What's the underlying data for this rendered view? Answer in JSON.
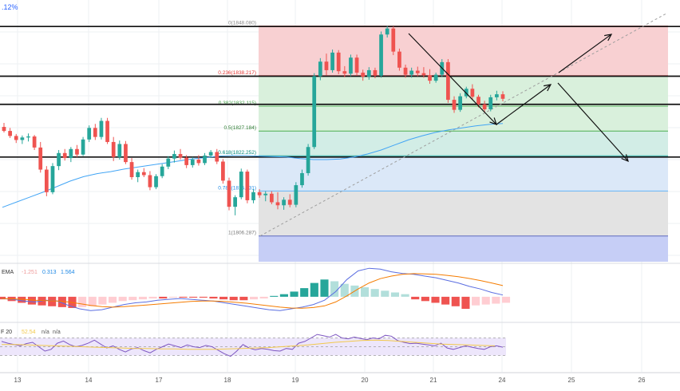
{
  "header": {
    "price_fragment": ".12%"
  },
  "colors": {
    "bull": "#26a69a",
    "bear": "#ef5350",
    "ema_line": "#42a5f5",
    "macd_line": "#5b6ee1",
    "signal_line": "#f57c00",
    "rsi_line": "#7e57c2",
    "rsi_ma": "#f2c94c",
    "fib_red": "#f8d0d2",
    "fib_green": "#d9f0dc",
    "fib_teal": "#d2ede6",
    "fib_blue": "#dbe8f8",
    "fib_gray": "#e3e3e3",
    "fib_violet": "#c6cef6",
    "rsi_band": "#ede6fb"
  },
  "chart_data": [
    {
      "type": "candlestick",
      "title": "",
      "x_labels": [
        "13",
        "14",
        "17",
        "18",
        "19",
        "20",
        "21",
        "24",
        "25",
        "26"
      ],
      "y_range": [
        1801,
        1852
      ],
      "fib_levels": [
        {
          "ratio": "0",
          "price": 1848.08,
          "label": "0(1848.080)"
        },
        {
          "ratio": "0.236",
          "price": 1838.217,
          "label": "0.236(1838.217)"
        },
        {
          "ratio": "0.382",
          "price": 1832.115,
          "label": "0.382(1832.115)"
        },
        {
          "ratio": "0.5",
          "price": 1827.184,
          "label": "0.5(1827.184)"
        },
        {
          "ratio": "0.618",
          "price": 1822.252,
          "label": "0.618(1822.252)"
        },
        {
          "ratio": "0.786",
          "price": 1815.231,
          "label": "0.786(1815.231)"
        },
        {
          "ratio": "1",
          "price": 1806.287,
          "label": "1(1806.287)"
        }
      ],
      "horizontal_lines": [
        1848.0,
        1838.1,
        1832.5,
        1822.0
      ],
      "candles": [
        [
          1828.0,
          1828.8,
          1826.9,
          1827.2
        ],
        [
          1827.2,
          1827.8,
          1825.8,
          1826.2
        ],
        [
          1826.2,
          1826.6,
          1824.8,
          1825.4
        ],
        [
          1825.4,
          1826.3,
          1824.6,
          1825.9
        ],
        [
          1825.9,
          1826.7,
          1825.1,
          1826.1
        ],
        [
          1826.1,
          1826.4,
          1823.4,
          1823.9
        ],
        [
          1823.9,
          1825.0,
          1818.9,
          1819.5
        ],
        [
          1819.5,
          1820.2,
          1814.2,
          1815.0
        ],
        [
          1815.0,
          1820.8,
          1814.6,
          1820.2
        ],
        [
          1820.2,
          1823.4,
          1819.4,
          1822.8
        ],
        [
          1822.8,
          1823.6,
          1821.3,
          1821.8
        ],
        [
          1821.8,
          1824.0,
          1821.0,
          1823.6
        ],
        [
          1823.6,
          1824.4,
          1822.0,
          1822.5
        ],
        [
          1822.5,
          1826.0,
          1822.2,
          1825.5
        ],
        [
          1825.5,
          1828.3,
          1825.0,
          1827.8
        ],
        [
          1827.8,
          1828.6,
          1825.4,
          1826.0
        ],
        [
          1826.0,
          1829.8,
          1825.5,
          1829.2
        ],
        [
          1829.2,
          1829.8,
          1824.6,
          1825.0
        ],
        [
          1825.0,
          1826.0,
          1821.2,
          1822.0
        ],
        [
          1822.0,
          1825.3,
          1821.5,
          1824.6
        ],
        [
          1824.6,
          1825.2,
          1820.6,
          1821.0
        ],
        [
          1821.0,
          1821.8,
          1817.5,
          1818.0
        ],
        [
          1818.0,
          1819.5,
          1817.0,
          1819.0
        ],
        [
          1819.0,
          1819.8,
          1818.0,
          1818.4
        ],
        [
          1818.4,
          1819.2,
          1815.4,
          1816.0
        ],
        [
          1816.0,
          1818.6,
          1815.6,
          1818.2
        ],
        [
          1818.2,
          1820.6,
          1817.8,
          1820.1
        ],
        [
          1820.1,
          1822.2,
          1819.6,
          1821.7
        ],
        [
          1821.7,
          1823.3,
          1820.9,
          1822.6
        ],
        [
          1822.6,
          1823.6,
          1821.5,
          1821.9
        ],
        [
          1821.9,
          1822.4,
          1819.8,
          1820.4
        ],
        [
          1820.4,
          1822.0,
          1819.9,
          1821.5
        ],
        [
          1821.5,
          1822.4,
          1820.3,
          1820.8
        ],
        [
          1820.8,
          1822.8,
          1820.4,
          1822.3
        ],
        [
          1822.3,
          1823.4,
          1821.8,
          1823.0
        ],
        [
          1823.0,
          1823.6,
          1820.6,
          1821.1
        ],
        [
          1821.1,
          1821.6,
          1816.7,
          1817.3
        ],
        [
          1817.3,
          1817.9,
          1811.4,
          1812.1
        ],
        [
          1812.1,
          1814.4,
          1810.4,
          1814.0
        ],
        [
          1814.0,
          1819.7,
          1813.6,
          1819.1
        ],
        [
          1819.1,
          1819.5,
          1812.8,
          1813.4
        ],
        [
          1813.4,
          1815.6,
          1812.8,
          1815.0
        ],
        [
          1815.0,
          1815.6,
          1813.9,
          1814.4
        ],
        [
          1814.4,
          1815.2,
          1813.2,
          1814.7
        ],
        [
          1814.7,
          1815.2,
          1812.6,
          1813.0
        ],
        [
          1813.0,
          1815.0,
          1811.6,
          1812.4
        ],
        [
          1812.4,
          1814.0,
          1811.5,
          1813.5
        ],
        [
          1813.5,
          1814.6,
          1812.0,
          1812.5
        ],
        [
          1812.5,
          1817.0,
          1812.0,
          1816.4
        ],
        [
          1816.4,
          1819.5,
          1815.9,
          1818.8
        ],
        [
          1818.8,
          1824.6,
          1818.3,
          1824.0
        ],
        [
          1824.0,
          1838.7,
          1823.6,
          1838.1
        ],
        [
          1838.1,
          1841.7,
          1837.3,
          1841.0
        ],
        [
          1841.0,
          1842.6,
          1838.3,
          1839.3
        ],
        [
          1839.3,
          1843.4,
          1838.8,
          1842.8
        ],
        [
          1842.8,
          1843.3,
          1838.5,
          1839.1
        ],
        [
          1839.1,
          1840.1,
          1837.9,
          1838.6
        ],
        [
          1838.6,
          1842.4,
          1838.1,
          1841.8
        ],
        [
          1841.8,
          1842.4,
          1838.2,
          1838.8
        ],
        [
          1838.8,
          1839.4,
          1837.2,
          1838.0
        ],
        [
          1838.0,
          1839.9,
          1837.4,
          1839.3
        ],
        [
          1839.3,
          1839.8,
          1837.7,
          1838.2
        ],
        [
          1838.2,
          1847.0,
          1837.8,
          1846.4
        ],
        [
          1846.4,
          1848.1,
          1845.8,
          1847.6
        ],
        [
          1847.6,
          1848.0,
          1842.3,
          1843.0
        ],
        [
          1843.0,
          1843.6,
          1839.2,
          1839.8
        ],
        [
          1839.8,
          1840.4,
          1837.8,
          1838.4
        ],
        [
          1838.4,
          1839.8,
          1837.8,
          1839.2
        ],
        [
          1839.2,
          1840.0,
          1838.1,
          1838.7
        ],
        [
          1838.7,
          1839.9,
          1837.8,
          1838.3
        ],
        [
          1838.3,
          1839.5,
          1836.6,
          1837.2
        ],
        [
          1837.2,
          1838.8,
          1836.8,
          1838.4
        ],
        [
          1838.4,
          1841.5,
          1838.0,
          1840.9
        ],
        [
          1840.9,
          1841.5,
          1832.8,
          1833.4
        ],
        [
          1833.4,
          1834.1,
          1830.8,
          1831.4
        ],
        [
          1831.4,
          1834.7,
          1831.0,
          1834.1
        ],
        [
          1834.1,
          1836.0,
          1833.7,
          1835.6
        ],
        [
          1835.6,
          1836.5,
          1833.5,
          1834.0
        ],
        [
          1834.0,
          1834.4,
          1831.9,
          1832.5
        ],
        [
          1832.5,
          1833.2,
          1830.9,
          1831.5
        ],
        [
          1831.5,
          1834.4,
          1831.1,
          1833.9
        ],
        [
          1833.9,
          1835.2,
          1833.3,
          1834.5
        ],
        [
          1834.5,
          1835.1,
          1833.1,
          1833.6
        ]
      ],
      "ema": [
        1812.0,
        1813.0,
        1814.0,
        1815.0,
        1816.1,
        1817.2,
        1818.1,
        1818.7,
        1819.1,
        1819.6,
        1820.0,
        1820.4,
        1820.8,
        1821.2,
        1821.6,
        1821.9,
        1822.2,
        1822.3,
        1822.3,
        1822.2,
        1822.1,
        1822.0,
        1821.7,
        1821.5,
        1821.5,
        1821.6,
        1822.0,
        1822.6,
        1823.4,
        1824.4,
        1825.4,
        1826.2,
        1826.9,
        1827.4,
        1827.8,
        1828.2,
        1828.5,
        1828.7
      ],
      "trend_line": {
        "from": [
          1806.3
        ],
        "to": [
          1850.5
        ]
      }
    },
    {
      "type": "macd",
      "legend": [
        "EMA",
        "-1.251",
        "0.313",
        "1.564"
      ],
      "y_range": [
        -2.6,
        3.6
      ],
      "macd": [
        -0.2,
        -0.3,
        -0.5,
        -0.6,
        -0.4,
        -0.5,
        -1.0,
        -1.4,
        -1.6,
        -1.5,
        -1.2,
        -0.9,
        -0.7,
        -0.6,
        -0.4,
        -0.3,
        -0.2,
        -0.3,
        -0.4,
        -0.5,
        -0.7,
        -0.9,
        -1.1,
        -1.3,
        -1.5,
        -1.6,
        -1.4,
        -1.2,
        -0.9,
        -0.4,
        0.6,
        2.0,
        3.0,
        3.3,
        3.2,
        2.9,
        2.7,
        2.6,
        2.4,
        2.2,
        1.9,
        1.6,
        1.2,
        0.9,
        0.5,
        0.2
      ],
      "signal": [
        -0.2,
        -0.25,
        -0.3,
        -0.4,
        -0.45,
        -0.5,
        -0.6,
        -0.8,
        -1.0,
        -1.15,
        -1.2,
        -1.15,
        -1.05,
        -0.95,
        -0.85,
        -0.75,
        -0.65,
        -0.55,
        -0.5,
        -0.5,
        -0.55,
        -0.65,
        -0.75,
        -0.9,
        -1.05,
        -1.2,
        -1.3,
        -1.32,
        -1.25,
        -1.05,
        -0.6,
        0.1,
        0.9,
        1.6,
        2.1,
        2.4,
        2.6,
        2.68,
        2.66,
        2.6,
        2.48,
        2.32,
        2.12,
        1.88,
        1.6,
        1.3
      ],
      "histogram": [
        -0.3,
        -0.5,
        -0.7,
        -0.9,
        -1.0,
        -1.1,
        -1.2,
        -1.3,
        -1.2,
        -1.1,
        -0.9,
        -0.7,
        -0.5,
        -0.4,
        -0.3,
        -0.2,
        -0.2,
        -0.1,
        -0.1,
        -0.1,
        -0.1,
        -0.2,
        -0.3,
        -0.4,
        -0.4,
        -0.3,
        -0.2,
        0.1,
        0.3,
        0.6,
        1.0,
        1.6,
        2.0,
        1.8,
        1.5,
        1.3,
        1.1,
        0.9,
        0.7,
        0.5,
        0.3,
        -0.3,
        -0.5,
        -0.7,
        -0.9,
        -1.1,
        -1.4,
        -1.0,
        -0.9,
        -0.8,
        -0.7
      ]
    },
    {
      "type": "rsi",
      "legend": [
        "F 20",
        "52.54",
        "n/a",
        "n/a"
      ],
      "y_range": [
        0,
        100
      ],
      "rsi": [
        62,
        58,
        55,
        52,
        57,
        60,
        50,
        40,
        44,
        58,
        63,
        55,
        50,
        53,
        58,
        65,
        56,
        47,
        52,
        44,
        38,
        45,
        48,
        41,
        36,
        44,
        50,
        56,
        52,
        48,
        54,
        50,
        48,
        53,
        50,
        42,
        34,
        28,
        40,
        55,
        47,
        43,
        46,
        44,
        41,
        40,
        46,
        44,
        58,
        62,
        70,
        78,
        75,
        72,
        78,
        70,
        68,
        72,
        69,
        66,
        70,
        68,
        76,
        74,
        64,
        60,
        57,
        58,
        56,
        54,
        52,
        58,
        47,
        44,
        48,
        52,
        49,
        46,
        44,
        50,
        52,
        49
      ],
      "ma": [
        55,
        55,
        54,
        53,
        52,
        51,
        50,
        49,
        48,
        47,
        46,
        46,
        45,
        45,
        44,
        44,
        44,
        45,
        46,
        47,
        48,
        50,
        52,
        54,
        57,
        60,
        62,
        64,
        65,
        64,
        62,
        60,
        58,
        56,
        55,
        54,
        53,
        52
      ]
    }
  ]
}
